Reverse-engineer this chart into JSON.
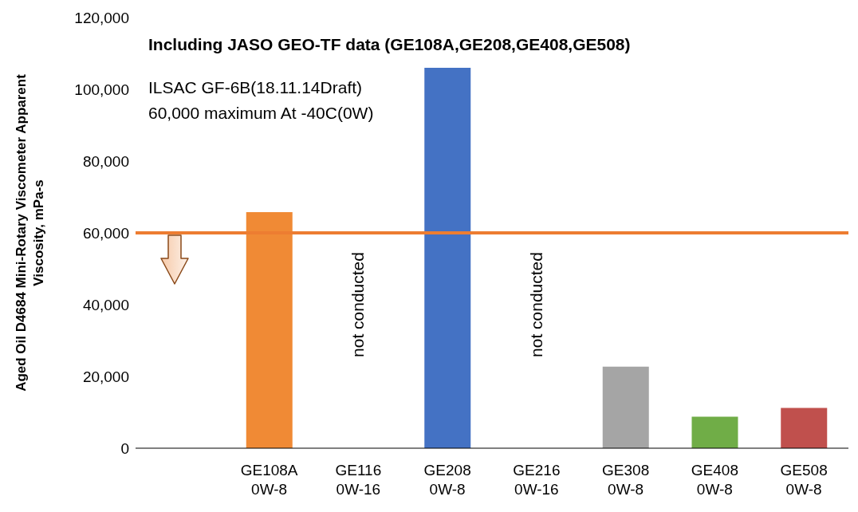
{
  "chart_data": {
    "type": "bar",
    "ylabel": "Aged Oil D4684 Mini-Rotary Viscometer Apparent\nViscosity, mPa-s",
    "categories": [
      null,
      "GE108A\n0W-8",
      "GE116\n0W-16",
      "GE208\n0W-8",
      "GE216\n0W-16",
      "GE308\n0W-8",
      "GE408\n0W-8",
      "GE508\n0W-8"
    ],
    "values": [
      null,
      65800,
      null,
      106000,
      null,
      22700,
      8800,
      11200
    ],
    "colors": [
      null,
      "#f08a35",
      null,
      "#4472c4",
      null,
      "#a5a5a5",
      "#70ad47",
      "#c0504d"
    ],
    "ylim": [
      0,
      120000
    ],
    "yticks": [
      {
        "value": 0,
        "label": "0"
      },
      {
        "value": 20000,
        "label": "20,000"
      },
      {
        "value": 40000,
        "label": "40,000"
      },
      {
        "value": 60000,
        "label": "60,000"
      },
      {
        "value": 80000,
        "label": "80,000"
      },
      {
        "value": 100000,
        "label": "100,000"
      },
      {
        "value": 120000,
        "label": "120,000"
      }
    ],
    "ref_lines": [
      {
        "axis": "y",
        "value": 60000,
        "color": "#ed7d31"
      }
    ],
    "annotations": [
      "Including JASO GEO-TF data (GE108A,GE208,GE408,GE508)",
      "ILSAC GF-6B(18.11.14Draft)",
      "60,000 maximum At -40C(0W)",
      "not conducted",
      "not conducted"
    ],
    "grid": false,
    "legend": false
  }
}
